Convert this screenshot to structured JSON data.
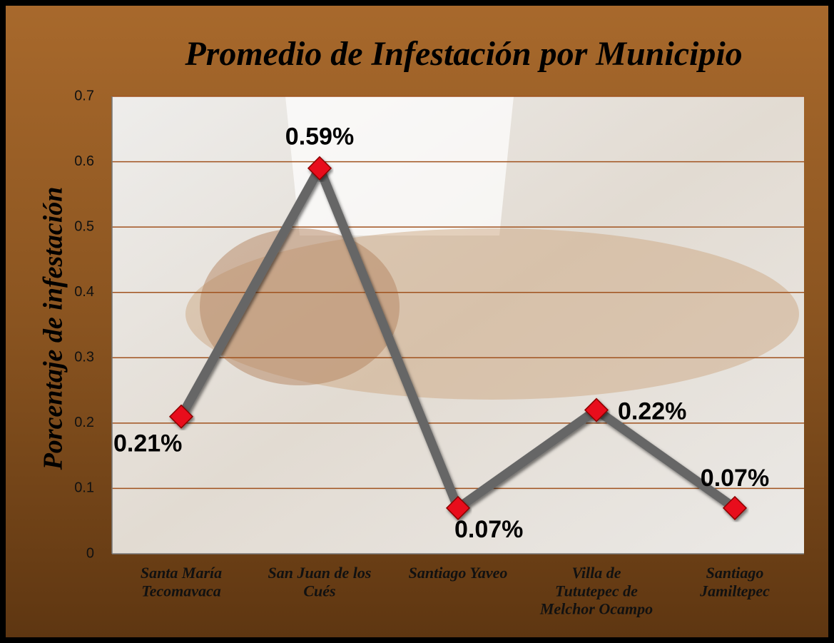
{
  "chart_data": {
    "type": "line",
    "title": "Promedio de Infestación por Municipio",
    "y_label": "Porcentaje de infestación",
    "categories": [
      "Santa María\nTecomavaca",
      "San Juan de los\nCués",
      "Santiago Yaveo",
      "Villa de\nTututepec de\nMelchor Ocampo",
      "Santiago\nJamiltepec"
    ],
    "values": [
      0.21,
      0.59,
      0.07,
      0.22,
      0.07
    ],
    "value_labels": [
      "0.21%",
      "0.59%",
      "0.07%",
      "0.22%",
      "0.07%"
    ],
    "color": "#666666",
    "marker_color": "#e8101a",
    "ylim": [
      0,
      0.7
    ],
    "yticks": [
      0,
      0.1,
      0.2,
      0.3,
      0.4,
      0.5,
      0.6,
      0.7
    ],
    "grid": true
  }
}
